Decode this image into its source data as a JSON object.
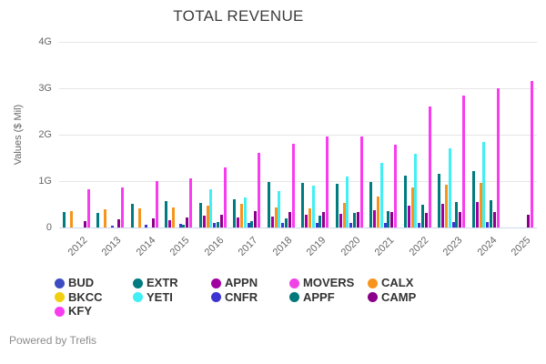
{
  "footer": {
    "powered_by": "Powered by Trefis"
  },
  "chart_data": {
    "type": "bar",
    "title": "TOTAL REVENUE",
    "xlabel": "",
    "ylabel": "Values ($ Mil)",
    "ylim": [
      0,
      4
    ],
    "unit": "G = billions of $",
    "grid": true,
    "legend_position": "bottom",
    "ytick_values": [
      0,
      1,
      2,
      3,
      4
    ],
    "ytick_labels": [
      "0",
      "1G",
      "2G",
      "3G",
      "4G"
    ],
    "categories": [
      "2012",
      "2013",
      "2014",
      "2015",
      "2016",
      "2017",
      "2018",
      "2019",
      "2020",
      "2021",
      "2022",
      "2023",
      "2024",
      "2025"
    ],
    "series": [
      {
        "name": "BUD",
        "color": "#3e4cc3",
        "values": [
          null,
          null,
          null,
          null,
          null,
          null,
          null,
          null,
          null,
          null,
          null,
          null,
          null,
          null
        ]
      },
      {
        "name": "EXTR",
        "color": "#007b80",
        "values": [
          0.34,
          0.31,
          0.51,
          0.57,
          0.52,
          0.6,
          0.98,
          0.97,
          0.95,
          0.99,
          1.11,
          1.16,
          1.22,
          null
        ]
      },
      {
        "name": "APPN",
        "color": "#a100a1",
        "values": [
          null,
          null,
          null,
          0.16,
          0.25,
          0.21,
          0.24,
          0.27,
          0.3,
          0.37,
          0.47,
          0.5,
          0.55,
          null
        ]
      },
      {
        "name": "MOVERS",
        "color": "#f043e6",
        "values": [
          null,
          null,
          null,
          null,
          null,
          null,
          null,
          null,
          null,
          null,
          null,
          null,
          null,
          null
        ]
      },
      {
        "name": "CALX",
        "color": "#f7941d",
        "values": [
          0.36,
          0.39,
          0.41,
          0.44,
          0.48,
          0.5,
          0.44,
          0.42,
          0.52,
          0.67,
          0.86,
          0.92,
          0.96,
          null
        ]
      },
      {
        "name": "BKCC",
        "color": "#f2cf0e",
        "values": [
          null,
          null,
          null,
          null,
          null,
          null,
          null,
          null,
          null,
          null,
          null,
          null,
          null,
          null
        ]
      },
      {
        "name": "YETI",
        "color": "#41f0f4",
        "values": [
          null,
          null,
          null,
          null,
          0.82,
          0.64,
          0.78,
          0.91,
          1.09,
          1.4,
          1.58,
          1.71,
          1.85,
          null
        ]
      },
      {
        "name": "CNFR",
        "color": "#3b35d1",
        "values": [
          null,
          0.04,
          0.05,
          0.07,
          0.09,
          0.1,
          0.1,
          0.1,
          0.1,
          0.1,
          0.1,
          0.11,
          0.12,
          null
        ]
      },
      {
        "name": "APPF",
        "color": "#00797b",
        "values": [
          null,
          null,
          null,
          0.06,
          0.11,
          0.14,
          0.19,
          0.26,
          0.31,
          0.36,
          0.49,
          0.54,
          0.59,
          null
        ]
      },
      {
        "name": "CAMP",
        "color": "#8b008b",
        "values": [
          0.13,
          0.17,
          0.2,
          0.22,
          0.27,
          0.36,
          0.33,
          0.33,
          0.33,
          0.34,
          0.31,
          0.33,
          0.33,
          0.28
        ]
      },
      {
        "name": "KFY",
        "color": "#f93cf0",
        "values": [
          0.82,
          0.87,
          1.0,
          1.06,
          1.3,
          1.6,
          1.8,
          1.97,
          1.96,
          1.79,
          2.6,
          2.85,
          3.0,
          3.15
        ]
      }
    ],
    "legend_rows": [
      [
        "BUD",
        "EXTR",
        "APPN",
        "MOVERS",
        "CALX"
      ],
      [
        "BKCC",
        "YETI",
        "CNFR",
        "APPF",
        "CAMP"
      ],
      [
        "KFY"
      ]
    ]
  }
}
